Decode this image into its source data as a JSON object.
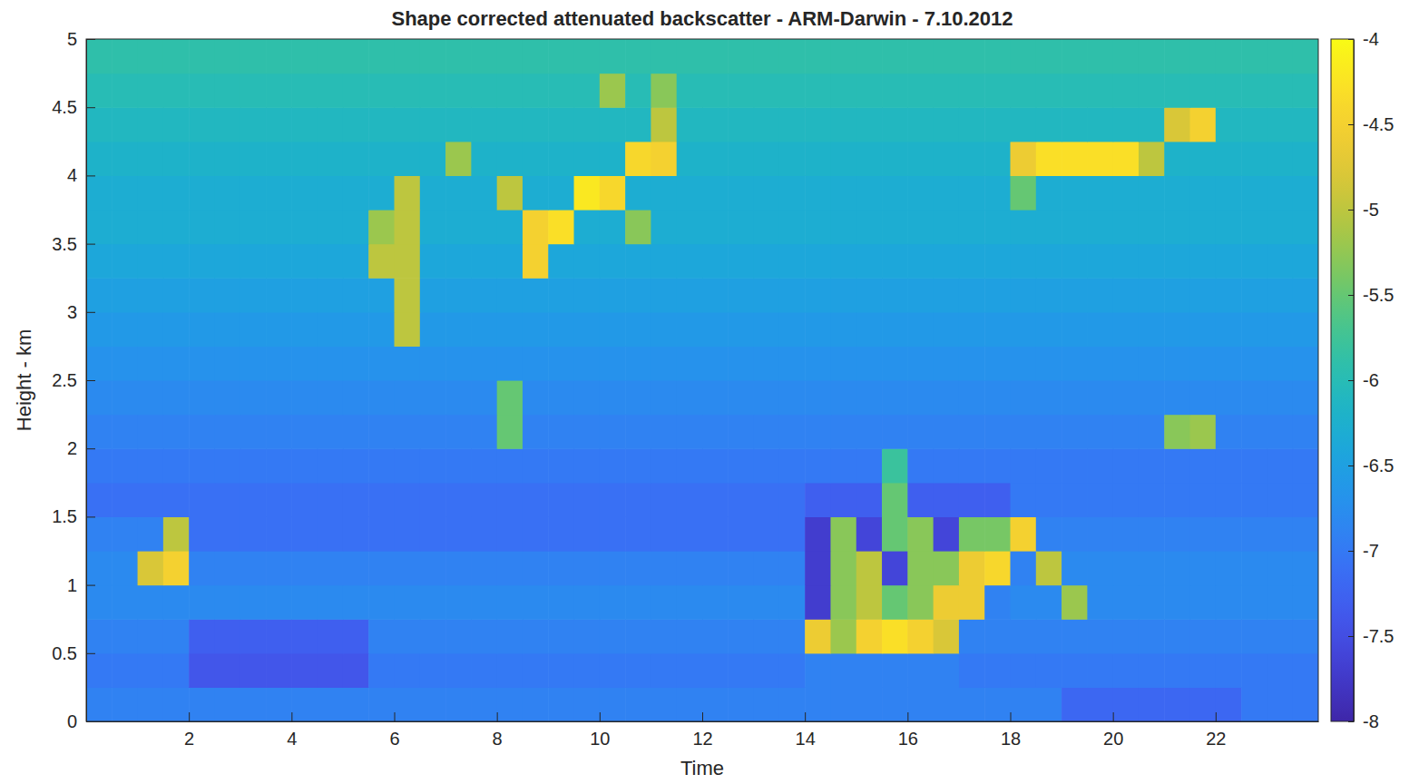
{
  "chart_data": {
    "type": "heatmap",
    "title": "Shape corrected attenuated backscatter - ARM-Darwin - 7.10.2012",
    "x_label": "Time",
    "y_label": "Height - km",
    "xlim": [
      0,
      24
    ],
    "ylim": [
      0,
      5
    ],
    "xticks": [
      2,
      4,
      6,
      8,
      10,
      12,
      14,
      16,
      18,
      20,
      22
    ],
    "yticks": [
      0,
      0.5,
      1,
      1.5,
      2,
      2.5,
      3,
      3.5,
      4,
      4.5,
      5
    ],
    "x": [
      0.25,
      0.75,
      1.25,
      1.75,
      2.25,
      2.75,
      3.25,
      3.75,
      4.25,
      4.75,
      5.25,
      5.75,
      6.25,
      6.75,
      7.25,
      7.75,
      8.25,
      8.75,
      9.25,
      9.75,
      10.25,
      10.75,
      11.25,
      11.75,
      12.25,
      12.75,
      13.25,
      13.75,
      14.25,
      14.75,
      15.25,
      15.75,
      16.25,
      16.75,
      17.25,
      17.75,
      18.25,
      18.75,
      19.25,
      19.75,
      20.25,
      20.75,
      21.25,
      21.75,
      22.25,
      22.75,
      23.25,
      23.75
    ],
    "y": [
      0.125,
      0.375,
      0.625,
      0.875,
      1.125,
      1.375,
      1.625,
      1.875,
      2.125,
      2.375,
      2.625,
      2.875,
      3.125,
      3.375,
      3.625,
      3.875,
      4.125,
      4.375,
      4.625,
      4.875
    ],
    "z": [
      [
        -6.9,
        -6.9,
        -6.9,
        -6.9,
        -6.9,
        -6.9,
        -6.9,
        -6.9,
        -6.9,
        -6.9,
        -6.9,
        -6.9,
        -6.9,
        -6.9,
        -6.9,
        -6.9,
        -6.9,
        -6.9,
        -6.9,
        -6.9,
        -6.9,
        -6.9,
        -6.9,
        -6.9,
        -6.9,
        -6.9,
        -6.9,
        -6.9,
        -6.9,
        -6.9,
        -6.9,
        -6.9,
        -6.9,
        -6.9,
        -6.9,
        -6.9,
        -6.9,
        -6.9,
        -7.2,
        -7.2,
        -7.2,
        -7.2,
        -7.2,
        -7.2,
        -7.2,
        -7.0,
        -7.0,
        -7.0
      ],
      [
        -7.0,
        -7.0,
        -7.0,
        -7.0,
        -7.4,
        -7.4,
        -7.4,
        -7.4,
        -7.4,
        -7.4,
        -7.4,
        -7.0,
        -7.0,
        -7.0,
        -7.0,
        -7.0,
        -7.0,
        -7.0,
        -7.0,
        -7.0,
        -7.0,
        -7.0,
        -7.0,
        -7.0,
        -7.0,
        -7.0,
        -7.0,
        -7.0,
        -6.9,
        -6.9,
        -6.9,
        -6.9,
        -6.9,
        -6.9,
        -7.0,
        -7.0,
        -7.0,
        -7.0,
        -7.0,
        -7.0,
        -7.0,
        -7.0,
        -7.0,
        -7.0,
        -7.0,
        -7.0,
        -7.0,
        -7.0
      ],
      [
        -6.9,
        -6.9,
        -6.9,
        -6.9,
        -7.3,
        -7.3,
        -7.3,
        -7.3,
        -7.3,
        -7.3,
        -7.3,
        -6.9,
        -6.9,
        -6.9,
        -6.9,
        -6.9,
        -6.9,
        -6.9,
        -6.9,
        -6.9,
        -6.9,
        -6.9,
        -6.9,
        -6.9,
        -6.9,
        -6.9,
        -6.9,
        -6.9,
        -4.6,
        -5.2,
        -4.5,
        -4.3,
        -4.5,
        -4.8,
        -6.9,
        -6.9,
        -6.9,
        -6.9,
        -6.9,
        -6.9,
        -6.9,
        -6.9,
        -6.9,
        -6.9,
        -6.9,
        -6.9,
        -6.9,
        -6.9
      ],
      [
        -6.8,
        -6.8,
        -6.8,
        -6.8,
        -6.8,
        -6.8,
        -6.8,
        -6.8,
        -6.8,
        -6.8,
        -6.8,
        -6.8,
        -6.8,
        -6.8,
        -6.8,
        -6.8,
        -6.8,
        -6.8,
        -6.8,
        -6.8,
        -6.8,
        -6.8,
        -6.8,
        -6.8,
        -6.8,
        -6.8,
        -6.8,
        -6.8,
        -7.7,
        -5.3,
        -5.0,
        -5.5,
        -5.3,
        -4.6,
        -4.6,
        -6.9,
        -6.8,
        -6.8,
        -5.2,
        -6.8,
        -6.8,
        -6.8,
        -6.8,
        -6.8,
        -6.8,
        -6.8,
        -6.8,
        -6.8
      ],
      [
        -6.8,
        -6.8,
        -4.8,
        -4.5,
        -6.9,
        -6.9,
        -6.9,
        -6.9,
        -6.9,
        -6.9,
        -6.9,
        -6.9,
        -6.9,
        -6.9,
        -6.9,
        -6.9,
        -6.9,
        -6.9,
        -6.9,
        -6.9,
        -6.9,
        -6.9,
        -6.9,
        -6.9,
        -6.9,
        -6.9,
        -6.9,
        -6.9,
        -7.7,
        -5.3,
        -5.0,
        -7.6,
        -5.3,
        -5.3,
        -4.6,
        -4.4,
        -6.9,
        -5.0,
        -6.8,
        -6.8,
        -6.8,
        -6.8,
        -6.8,
        -6.8,
        -6.8,
        -6.8,
        -6.8,
        -6.8
      ],
      [
        -6.9,
        -6.9,
        -6.9,
        -5.0,
        -7.1,
        -7.1,
        -7.1,
        -7.1,
        -7.1,
        -7.1,
        -7.1,
        -7.1,
        -7.1,
        -7.1,
        -7.1,
        -7.1,
        -7.1,
        -7.1,
        -7.1,
        -7.1,
        -7.1,
        -7.1,
        -7.1,
        -7.1,
        -7.1,
        -7.1,
        -7.1,
        -7.1,
        -7.7,
        -5.3,
        -7.6,
        -5.5,
        -5.3,
        -7.6,
        -5.4,
        -5.4,
        -4.5,
        -6.9,
        -6.9,
        -6.9,
        -6.9,
        -6.9,
        -6.9,
        -6.9,
        -6.9,
        -6.9,
        -6.9,
        -6.9
      ],
      [
        -7.1,
        -7.1,
        -7.1,
        -7.1,
        -7.1,
        -7.1,
        -7.1,
        -7.1,
        -7.1,
        -7.1,
        -7.1,
        -7.1,
        -7.1,
        -7.1,
        -7.1,
        -7.1,
        -7.1,
        -7.1,
        -7.1,
        -7.1,
        -7.1,
        -7.1,
        -7.1,
        -7.1,
        -7.1,
        -7.1,
        -7.1,
        -7.1,
        -7.3,
        -7.3,
        -7.3,
        -5.5,
        -7.3,
        -7.3,
        -7.3,
        -7.3,
        -7.0,
        -7.0,
        -7.0,
        -7.0,
        -7.0,
        -7.0,
        -7.0,
        -7.0,
        -7.0,
        -7.0,
        -7.0,
        -7.0
      ],
      [
        -7.0,
        -7.0,
        -7.0,
        -7.0,
        -7.0,
        -7.0,
        -7.0,
        -7.0,
        -7.0,
        -7.0,
        -7.0,
        -7.0,
        -7.0,
        -7.0,
        -7.0,
        -7.0,
        -7.0,
        -7.0,
        -7.0,
        -7.0,
        -7.0,
        -7.0,
        -7.0,
        -7.0,
        -7.0,
        -7.0,
        -7.0,
        -7.0,
        -7.0,
        -7.0,
        -7.0,
        -5.8,
        -7.0,
        -7.0,
        -7.0,
        -7.0,
        -7.0,
        -7.0,
        -7.0,
        -7.0,
        -7.0,
        -7.0,
        -7.0,
        -7.0,
        -7.0,
        -7.0,
        -7.0,
        -7.0
      ],
      [
        -6.9,
        -6.9,
        -6.9,
        -6.9,
        -6.9,
        -6.9,
        -6.9,
        -6.9,
        -6.9,
        -6.9,
        -6.9,
        -6.9,
        -6.9,
        -6.9,
        -6.9,
        -6.9,
        -5.5,
        -6.9,
        -6.9,
        -6.9,
        -6.9,
        -6.9,
        -6.9,
        -6.9,
        -6.9,
        -6.9,
        -6.9,
        -6.9,
        -6.9,
        -6.9,
        -6.9,
        -6.9,
        -6.9,
        -6.9,
        -6.9,
        -6.9,
        -6.9,
        -6.9,
        -6.9,
        -6.9,
        -6.9,
        -6.9,
        -5.3,
        -5.2,
        -6.9,
        -6.9,
        -6.9,
        -6.9
      ],
      [
        -6.8,
        -6.8,
        -6.8,
        -6.8,
        -6.8,
        -6.8,
        -6.8,
        -6.8,
        -6.8,
        -6.8,
        -6.8,
        -6.8,
        -6.8,
        -6.8,
        -6.8,
        -6.8,
        -5.5,
        -6.8,
        -6.8,
        -6.8,
        -6.8,
        -6.8,
        -6.8,
        -6.8,
        -6.8,
        -6.8,
        -6.8,
        -6.8,
        -6.8,
        -6.8,
        -6.8,
        -6.8,
        -6.8,
        -6.8,
        -6.8,
        -6.8,
        -6.8,
        -6.8,
        -6.8,
        -6.8,
        -6.8,
        -6.8,
        -6.8,
        -6.8,
        -6.8,
        -6.8,
        -6.8,
        -6.8
      ],
      [
        -6.7,
        -6.7,
        -6.7,
        -6.7,
        -6.7,
        -6.7,
        -6.7,
        -6.7,
        -6.7,
        -6.7,
        -6.7,
        -6.7,
        -6.7,
        -6.7,
        -6.7,
        -6.7,
        -6.7,
        -6.7,
        -6.7,
        -6.7,
        -6.7,
        -6.7,
        -6.7,
        -6.7,
        -6.7,
        -6.7,
        -6.7,
        -6.7,
        -6.7,
        -6.7,
        -6.7,
        -6.7,
        -6.7,
        -6.7,
        -6.7,
        -6.7,
        -6.7,
        -6.7,
        -6.7,
        -6.7,
        -6.7,
        -6.7,
        -6.7,
        -6.7,
        -6.7,
        -6.7,
        -6.7,
        -6.7
      ],
      [
        -6.6,
        -6.6,
        -6.6,
        -6.6,
        -6.6,
        -6.6,
        -6.6,
        -6.6,
        -6.6,
        -6.6,
        -6.6,
        -6.6,
        -5.0,
        -6.6,
        -6.6,
        -6.6,
        -6.6,
        -6.6,
        -6.6,
        -6.6,
        -6.6,
        -6.6,
        -6.6,
        -6.6,
        -6.6,
        -6.6,
        -6.6,
        -6.6,
        -6.6,
        -6.6,
        -6.6,
        -6.6,
        -6.6,
        -6.6,
        -6.6,
        -6.6,
        -6.6,
        -6.6,
        -6.6,
        -6.6,
        -6.6,
        -6.6,
        -6.6,
        -6.6,
        -6.6,
        -6.6,
        -6.6,
        -6.6
      ],
      [
        -6.5,
        -6.5,
        -6.5,
        -6.5,
        -6.5,
        -6.5,
        -6.5,
        -6.5,
        -6.5,
        -6.5,
        -6.5,
        -6.5,
        -5.0,
        -6.5,
        -6.5,
        -6.5,
        -6.5,
        -6.5,
        -6.5,
        -6.5,
        -6.5,
        -6.5,
        -6.5,
        -6.5,
        -6.5,
        -6.5,
        -6.5,
        -6.5,
        -6.5,
        -6.5,
        -6.5,
        -6.5,
        -6.5,
        -6.5,
        -6.5,
        -6.5,
        -6.5,
        -6.5,
        -6.5,
        -6.5,
        -6.5,
        -6.5,
        -6.5,
        -6.5,
        -6.5,
        -6.5,
        -6.5,
        -6.5
      ],
      [
        -6.4,
        -6.4,
        -6.4,
        -6.4,
        -6.4,
        -6.4,
        -6.4,
        -6.4,
        -6.4,
        -6.4,
        -6.4,
        -5.0,
        -5.0,
        -6.4,
        -6.4,
        -6.4,
        -6.4,
        -4.5,
        -6.4,
        -6.4,
        -6.4,
        -6.4,
        -6.4,
        -6.4,
        -6.4,
        -6.4,
        -6.4,
        -6.4,
        -6.4,
        -6.4,
        -6.4,
        -6.4,
        -6.4,
        -6.4,
        -6.4,
        -6.4,
        -6.4,
        -6.4,
        -6.4,
        -6.4,
        -6.4,
        -6.4,
        -6.4,
        -6.4,
        -6.4,
        -6.4,
        -6.4,
        -6.4
      ],
      [
        -6.3,
        -6.3,
        -6.3,
        -6.3,
        -6.3,
        -6.3,
        -6.3,
        -6.3,
        -6.3,
        -6.3,
        -6.3,
        -5.2,
        -5.0,
        -6.3,
        -6.3,
        -6.3,
        -6.3,
        -4.5,
        -4.3,
        -6.3,
        -6.3,
        -5.3,
        -6.3,
        -6.3,
        -6.3,
        -6.3,
        -6.3,
        -6.3,
        -6.3,
        -6.3,
        -6.3,
        -6.3,
        -6.3,
        -6.3,
        -6.3,
        -6.3,
        -6.3,
        -6.3,
        -6.3,
        -6.3,
        -6.3,
        -6.3,
        -6.3,
        -6.3,
        -6.3,
        -6.3,
        -6.3,
        -6.3
      ],
      [
        -6.3,
        -6.3,
        -6.3,
        -6.3,
        -6.3,
        -6.3,
        -6.3,
        -6.3,
        -6.3,
        -6.3,
        -6.3,
        -6.3,
        -5.0,
        -6.3,
        -6.3,
        -6.3,
        -5.0,
        -6.3,
        -6.3,
        -4.2,
        -4.4,
        -6.3,
        -6.3,
        -6.3,
        -6.3,
        -6.3,
        -6.3,
        -6.3,
        -6.3,
        -6.3,
        -6.3,
        -6.3,
        -6.3,
        -6.3,
        -6.3,
        -6.3,
        -5.5,
        -6.3,
        -6.3,
        -6.3,
        -6.3,
        -6.3,
        -6.3,
        -6.3,
        -6.3,
        -6.3,
        -6.3,
        -6.3
      ],
      [
        -6.2,
        -6.2,
        -6.2,
        -6.2,
        -6.2,
        -6.2,
        -6.2,
        -6.2,
        -6.2,
        -6.2,
        -6.2,
        -6.2,
        -6.2,
        -6.2,
        -5.2,
        -6.2,
        -6.2,
        -6.2,
        -6.2,
        -6.2,
        -6.2,
        -4.4,
        -4.5,
        -6.2,
        -6.2,
        -6.2,
        -6.2,
        -6.2,
        -6.2,
        -6.2,
        -6.2,
        -6.2,
        -6.2,
        -6.2,
        -6.2,
        -6.2,
        -4.6,
        -4.3,
        -4.3,
        -4.3,
        -4.3,
        -5.0,
        -6.2,
        -6.2,
        -6.2,
        -6.2,
        -6.2,
        -6.2
      ],
      [
        -6.1,
        -6.1,
        -6.1,
        -6.1,
        -6.1,
        -6.1,
        -6.1,
        -6.1,
        -6.1,
        -6.1,
        -6.1,
        -6.1,
        -6.1,
        -6.1,
        -6.1,
        -6.1,
        -6.1,
        -6.1,
        -6.1,
        -6.1,
        -6.1,
        -6.1,
        -5.0,
        -6.1,
        -6.1,
        -6.1,
        -6.1,
        -6.1,
        -6.1,
        -6.1,
        -6.1,
        -6.1,
        -6.1,
        -6.1,
        -6.1,
        -6.1,
        -6.1,
        -6.1,
        -6.1,
        -6.1,
        -6.1,
        -6.1,
        -4.8,
        -4.5,
        -6.1,
        -6.1,
        -6.1,
        -6.1
      ],
      [
        -6.0,
        -6.0,
        -6.0,
        -6.0,
        -6.0,
        -6.0,
        -6.0,
        -6.0,
        -6.0,
        -6.0,
        -6.0,
        -6.0,
        -6.0,
        -6.0,
        -6.0,
        -6.0,
        -6.0,
        -6.0,
        -6.0,
        -6.0,
        -5.2,
        -6.0,
        -5.3,
        -6.0,
        -6.0,
        -6.0,
        -6.0,
        -6.0,
        -6.0,
        -6.0,
        -6.0,
        -6.0,
        -6.0,
        -6.0,
        -6.0,
        -6.0,
        -6.0,
        -6.0,
        -6.0,
        -6.0,
        -6.0,
        -6.0,
        -6.0,
        -6.0,
        -6.0,
        -6.0,
        -6.0,
        -6.0
      ],
      [
        -5.9,
        -5.9,
        -5.9,
        -5.9,
        -5.9,
        -5.9,
        -5.9,
        -5.9,
        -5.9,
        -5.9,
        -5.9,
        -5.9,
        -5.9,
        -5.9,
        -5.9,
        -5.9,
        -5.9,
        -5.9,
        -5.9,
        -5.9,
        -5.9,
        -5.9,
        -5.9,
        -5.9,
        -5.9,
        -5.9,
        -5.9,
        -5.9,
        -5.9,
        -5.9,
        -5.9,
        -5.9,
        -5.9,
        -5.9,
        -5.9,
        -5.9,
        -5.9,
        -5.9,
        -5.9,
        -5.9,
        -5.9,
        -5.9,
        -5.9,
        -5.9,
        -5.9,
        -5.9,
        -5.9,
        -5.9
      ]
    ],
    "colorbar": {
      "range": [
        -8,
        -4
      ],
      "ticks": [
        -4,
        -4.5,
        -5,
        -5.5,
        -6,
        -6.5,
        -7,
        -7.5,
        -8
      ]
    }
  }
}
